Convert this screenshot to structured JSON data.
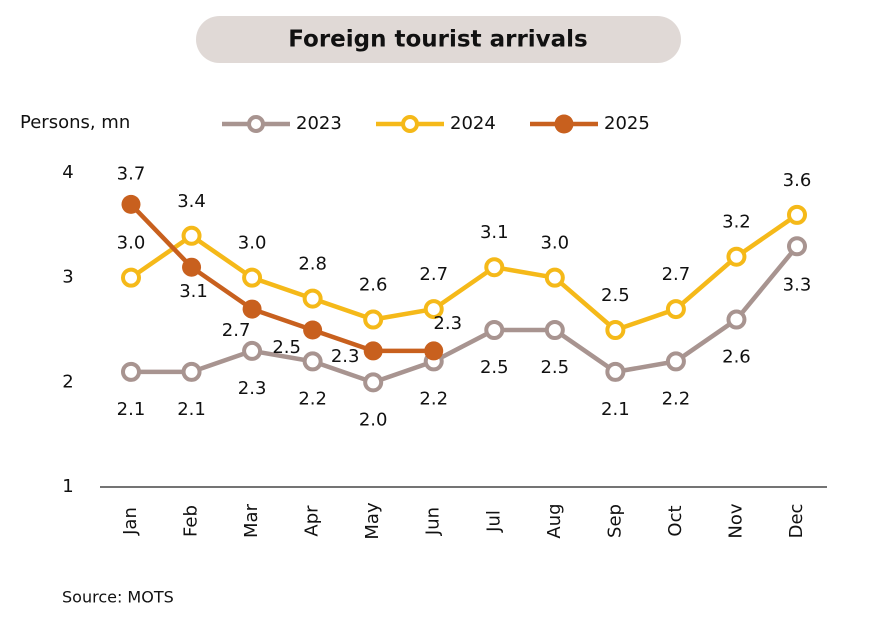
{
  "chart_data": {
    "type": "line",
    "title": "Foreign tourist arrivals",
    "ylabel": "Persons, mn",
    "source": "Source: MOTS",
    "categories": [
      "Jan",
      "Feb",
      "Mar",
      "Apr",
      "May",
      "Jun",
      "Jul",
      "Aug",
      "Sep",
      "Oct",
      "Nov",
      "Dec"
    ],
    "series": [
      {
        "name": "2023",
        "color": "#a89490",
        "marker": "hollow",
        "values": [
          2.1,
          2.1,
          2.3,
          2.2,
          2.0,
          2.2,
          2.5,
          2.5,
          2.1,
          2.2,
          2.6,
          3.3
        ],
        "value_labels": [
          "2.1",
          "2.1",
          "2.3",
          "2.2",
          "2.0",
          "2.2",
          "2.5",
          "2.5",
          "2.1",
          "2.2",
          "2.6",
          "3.3"
        ]
      },
      {
        "name": "2024",
        "color": "#f5b919",
        "marker": "hollow",
        "values": [
          3.0,
          3.4,
          3.0,
          2.8,
          2.6,
          2.7,
          3.1,
          3.0,
          2.5,
          2.7,
          3.2,
          3.6
        ],
        "value_labels": [
          "3.0",
          "3.4",
          "3.0",
          "2.8",
          "2.6",
          "2.7",
          "3.1",
          "3.0",
          "2.5",
          "2.7",
          "3.2",
          "3.6"
        ]
      },
      {
        "name": "2025",
        "color": "#c8601e",
        "marker": "filled",
        "values": [
          3.7,
          3.1,
          2.7,
          2.5,
          2.3,
          2.3,
          null,
          null,
          null,
          null,
          null,
          null
        ],
        "value_labels": [
          "3.7",
          "3.1",
          "2.7",
          "2.5",
          "2.3",
          "2.3",
          null,
          null,
          null,
          null,
          null,
          null
        ]
      }
    ],
    "ylim": [
      1,
      4
    ],
    "yticks": [
      1,
      2,
      3,
      4
    ],
    "grid": false,
    "legend": "top"
  }
}
